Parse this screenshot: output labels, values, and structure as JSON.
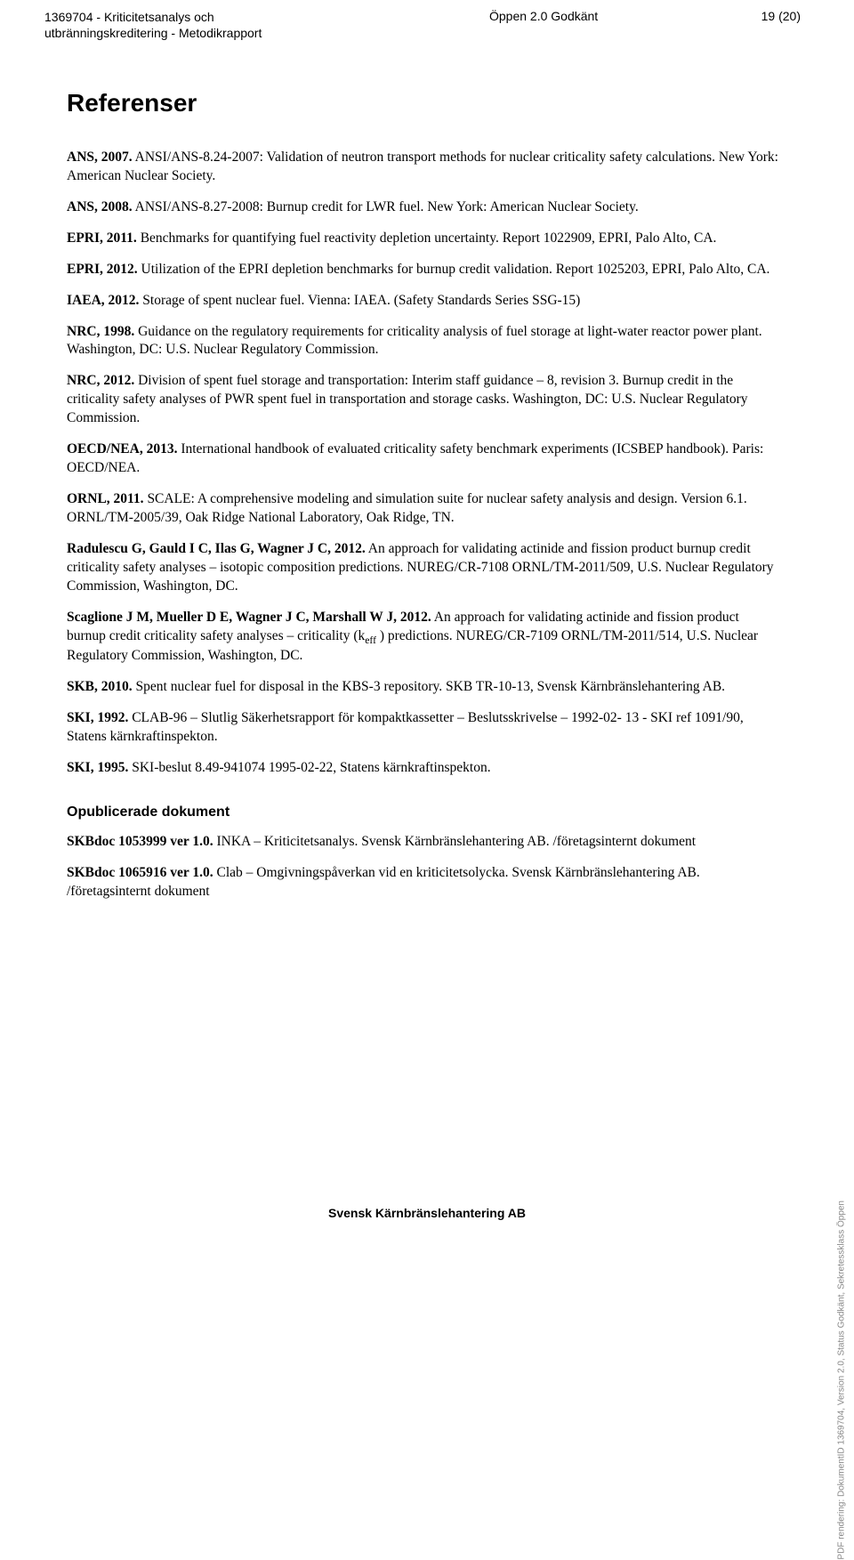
{
  "header": {
    "doc_id": "1369704 - Kriticitetsanalys och utbränningskreditering - Metodikrapport",
    "status": "Öppen  2.0  Godkänt",
    "page": "19 (20)"
  },
  "section_title": "Referenser",
  "refs": {
    "r1_b": "ANS, 2007.",
    "r1_t": " ANSI/ANS-8.24-2007: Validation of neutron transport methods for nuclear criticality safety calculations. New York: American Nuclear Society.",
    "r2_b": "ANS, 2008.",
    "r2_t": " ANSI/ANS-8.27-2008: Burnup credit for LWR fuel. New York: American Nuclear Society.",
    "r3_b": "EPRI,  2011.",
    "r3_t": " Benchmarks for quantifying fuel reactivity depletion uncertainty. Report 1022909, EPRI, Palo Alto, CA.",
    "r4_b": "EPRI, 2012.",
    "r4_t": " Utilization of the EPRI depletion benchmarks for burnup credit validation. Report 1025203, EPRI, Palo Alto, CA.",
    "r5_b": "IAEA, 2012.",
    "r5_t": " Storage of spent nuclear fuel. Vienna: IAEA. (Safety Standards Series SSG-15)",
    "r6_b": "NRC, 1998.",
    "r6_t": " Guidance on the regulatory requirements for criticality analysis of fuel storage at light-water reactor power plant. Washington, DC: U.S. Nuclear Regulatory Commission.",
    "r7_b": "NRC, 2012.",
    "r7_t": " Division of spent fuel storage and transportation: Interim staff guidance – 8, revision 3. Burnup credit in the criticality safety analyses of PWR spent fuel in transportation and storage casks. Washington, DC: U.S. Nuclear Regulatory Commission.",
    "r8_b": "OECD/NEA, 2013.",
    "r8_t": " International handbook of evaluated criticality safety benchmark experiments (ICSBEP handbook). Paris: OECD/NEA.",
    "r9_b": "ORNL, 2011.",
    "r9_t": " SCALE: A comprehensive modeling and simulation suite for nuclear safety analysis and design. Version 6.1. ORNL/TM-2005/39, Oak Ridge National Laboratory, Oak Ridge, TN.",
    "r10_b": "Radulescu G, Gauld I C, Ilas G, Wagner J C, 2012.",
    "r10_t": " An approach for validating actinide and fission product burnup credit criticality safety analyses – isotopic composition predictions. NUREG/CR-7108 ORNL/TM-2011/509, U.S. Nuclear Regulatory Commission, Washington, DC.",
    "r11_b": "Scaglione J M, Mueller D E, Wagner J C, Marshall W J, 2012.",
    "r11_t1": " An approach for validating actinide and fission product burnup credit criticality safety analyses – criticality (k",
    "r11_sub": "eff",
    "r11_t2": " ) predictions. NUREG/CR-7109 ORNL/TM-2011/514, U.S. Nuclear Regulatory Commission, Washington, DC.",
    "r12_b": "SKB, 2010.",
    "r12_t": " Spent nuclear fuel for disposal in the KBS-3 repository. SKB TR-10-13, Svensk Kärnbränslehantering AB.",
    "r13_b": "SKI, 1992.",
    "r13_t": " CLAB-96 – Slutlig Säkerhetsrapport för kompaktkassetter – Beslutsskrivelse – 1992-02- 13  - SKI ref 1091/90, Statens kärnkraftinspekton.",
    "r14_b": "SKI, 1995.",
    "r14_t": " SKI-beslut 8.49-941074 1995-02-22, Statens kärnkraftinspekton."
  },
  "unpub_heading": "Opublicerade dokument",
  "unpub": {
    "u1_b": "SKBdoc 1053999 ver 1.0.",
    "u1_t": " INKA – Kriticitetsanalys. Svensk Kärnbränslehantering AB. /företagsinternt dokument",
    "u2_b": "SKBdoc 1065916 ver 1.0.",
    "u2_t": " Clab – Omgivningspåverkan vid en kriticitetsolycka. Svensk Kärnbränslehantering AB. /företagsinternt dokument"
  },
  "footer": "Svensk Kärnbränslehantering AB",
  "side_text": "PDF rendering: DokumentID 1369704, Version 2.0, Status Godkänt, Sekretessklass Öppen"
}
